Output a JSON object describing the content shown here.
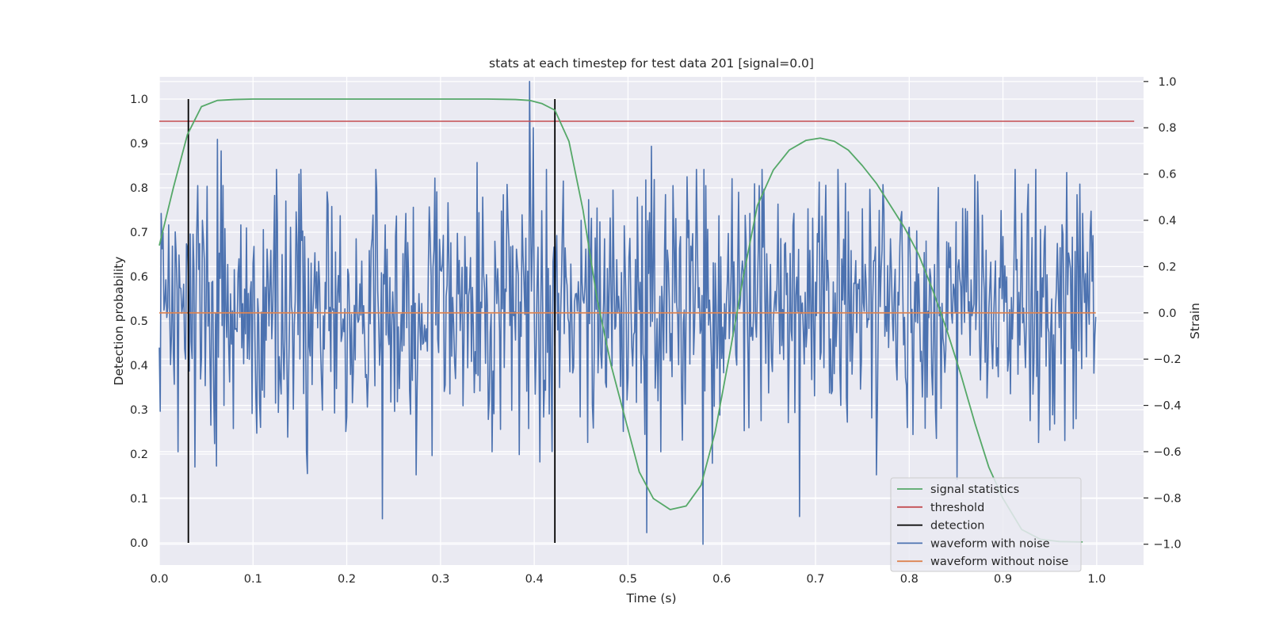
{
  "chart_data": {
    "type": "line",
    "title": "stats at each timestep for test data 201 [signal=0.0]",
    "xlabel": "Time (s)",
    "ylabel_left": "Detection probability",
    "ylabel_right": "Strain",
    "xlim": [
      0.0,
      1.05
    ],
    "ylim_left": [
      -0.05,
      1.05
    ],
    "ylim_right": [
      -1.09,
      1.02
    ],
    "x_ticks": [
      "0.0",
      "0.1",
      "0.2",
      "0.3",
      "0.4",
      "0.5",
      "0.6",
      "0.7",
      "0.8",
      "0.9",
      "1.0"
    ],
    "y_ticks_left": [
      "0.0",
      "0.1",
      "0.2",
      "0.3",
      "0.4",
      "0.5",
      "0.6",
      "0.7",
      "0.8",
      "0.9",
      "1.0"
    ],
    "y_ticks_right": [
      "−1.0",
      "−0.8",
      "−0.6",
      "−0.4",
      "−0.2",
      "0.0",
      "0.2",
      "0.4",
      "0.6",
      "0.8",
      "1.0"
    ],
    "y_tick_values_left": [
      0.0,
      0.1,
      0.2,
      0.3,
      0.4,
      0.5,
      0.6,
      0.7,
      0.8,
      0.9,
      1.0
    ],
    "y_tick_values_right": [
      -1.0,
      -0.8,
      -0.6,
      -0.4,
      -0.2,
      0.0,
      0.2,
      0.4,
      0.6,
      0.8,
      1.0
    ],
    "x_tick_values": [
      0.0,
      0.1,
      0.2,
      0.3,
      0.4,
      0.5,
      0.6,
      0.7,
      0.8,
      0.9,
      1.0
    ],
    "grid": true,
    "legend_position": "bottom-right",
    "background": "#eaeaf2",
    "series": [
      {
        "name": "signal statistics",
        "axis": "left",
        "color": "#55a868",
        "x": [
          0.0,
          0.015,
          0.03,
          0.045,
          0.062,
          0.08,
          0.1,
          0.15,
          0.2,
          0.25,
          0.3,
          0.35,
          0.38,
          0.395,
          0.408,
          0.422,
          0.437,
          0.452,
          0.467,
          0.482,
          0.497,
          0.512,
          0.527,
          0.545,
          0.562,
          0.578,
          0.593,
          0.608,
          0.623,
          0.638,
          0.655,
          0.672,
          0.69,
          0.705,
          0.72,
          0.735,
          0.75,
          0.765,
          0.78,
          0.795,
          0.81,
          0.825,
          0.84,
          0.855,
          0.87,
          0.885,
          0.9,
          0.92,
          0.94,
          0.96,
          0.985
        ],
        "values": [
          0.67,
          0.8,
          0.92,
          0.983,
          0.997,
          0.999,
          1.0,
          1.0,
          1.0,
          1.0,
          1.0,
          1.0,
          0.999,
          0.997,
          0.99,
          0.975,
          0.905,
          0.75,
          0.55,
          0.4,
          0.28,
          0.16,
          0.1,
          0.075,
          0.083,
          0.13,
          0.25,
          0.42,
          0.6,
          0.76,
          0.84,
          0.885,
          0.907,
          0.912,
          0.905,
          0.885,
          0.85,
          0.81,
          0.76,
          0.71,
          0.65,
          0.57,
          0.48,
          0.38,
          0.27,
          0.17,
          0.1,
          0.03,
          0.008,
          0.003,
          0.002
        ]
      },
      {
        "name": "threshold",
        "axis": "left",
        "color": "#c44e52",
        "x": [
          0.0,
          1.04
        ],
        "values": [
          0.95,
          0.95
        ]
      },
      {
        "name": "detection",
        "axis": "left",
        "color": "#000000",
        "type": "vlines",
        "x": [
          0.031,
          0.422
        ],
        "ymin": 0.0,
        "ymax": 1.0
      },
      {
        "name": "waveform with noise",
        "axis": "right",
        "color": "#4c72b0",
        "x_start": 0.0,
        "x_step": 0.001,
        "anchors": [
          [
            0.0,
            -0.15
          ],
          [
            0.002,
            0.43
          ],
          [
            0.006,
            0.05
          ],
          [
            0.01,
            0.38
          ],
          [
            0.013,
            -0.1
          ],
          [
            0.017,
            0.35
          ],
          [
            0.021,
            0.25
          ],
          [
            0.02,
            -0.6
          ],
          [
            0.025,
            0.03
          ],
          [
            0.028,
            -0.2
          ],
          [
            0.031,
            0.15
          ],
          [
            0.036,
            0.34
          ],
          [
            0.041,
            0.55
          ],
          [
            0.046,
            0.4
          ],
          [
            0.05,
            0.05
          ],
          [
            0.062,
            0.75
          ],
          [
            0.066,
            0.7
          ],
          [
            0.069,
            -0.4
          ],
          [
            0.079,
            -0.5
          ],
          [
            0.087,
            0.38
          ],
          [
            0.104,
            -0.52
          ],
          [
            0.119,
            0.27
          ],
          [
            0.127,
            -0.43
          ],
          [
            0.14,
            0.37
          ],
          [
            0.149,
            0.6
          ],
          [
            0.157,
            -0.6
          ],
          [
            0.166,
            0.26
          ],
          [
            0.174,
            -0.42
          ],
          [
            0.184,
            0.46
          ],
          [
            0.193,
            0.42
          ],
          [
            0.2,
            -0.45
          ],
          [
            0.21,
            0.32
          ],
          [
            0.238,
            -0.89
          ],
          [
            0.241,
            0.38
          ],
          [
            0.252,
            0.33
          ],
          [
            0.263,
            0.43
          ],
          [
            0.274,
            -0.7
          ],
          [
            0.293,
            0.27
          ],
          [
            0.31,
            -0.35
          ],
          [
            0.326,
            0.33
          ],
          [
            0.339,
            0.65
          ],
          [
            0.345,
            0.5
          ],
          [
            0.355,
            -0.6
          ],
          [
            0.365,
            0.44
          ],
          [
            0.377,
            0.29
          ],
          [
            0.388,
            0.25
          ],
          [
            0.395,
            1.0
          ],
          [
            0.394,
            -0.5
          ],
          [
            0.399,
            0.8
          ],
          [
            0.41,
            -0.45
          ],
          [
            0.42,
            0.22
          ],
          [
            0.431,
            0.57
          ],
          [
            0.45,
            0.4
          ],
          [
            0.462,
            -0.4
          ],
          [
            0.475,
            0.32
          ],
          [
            0.497,
            0.2
          ],
          [
            0.51,
            0.5
          ],
          [
            0.52,
            -0.95
          ],
          [
            0.525,
            0.72
          ],
          [
            0.535,
            -0.6
          ],
          [
            0.548,
            0.55
          ],
          [
            0.558,
            -0.55
          ],
          [
            0.565,
            0.4
          ],
          [
            0.58,
            -1.0
          ],
          [
            0.583,
            0.55
          ],
          [
            0.59,
            -0.65
          ],
          [
            0.597,
            0.42
          ],
          [
            0.611,
            0.58
          ],
          [
            0.63,
            0.43
          ],
          [
            0.64,
            0.55
          ],
          [
            0.66,
            0.47
          ],
          [
            0.677,
            0.43
          ],
          [
            0.683,
            -0.88
          ],
          [
            0.692,
            0.45
          ],
          [
            0.71,
            0.3
          ],
          [
            0.732,
            0.56
          ],
          [
            0.75,
            0.45
          ],
          [
            0.765,
            -0.7
          ],
          [
            0.78,
            0.32
          ],
          [
            0.8,
            0.37
          ],
          [
            0.83,
            0.27
          ],
          [
            0.86,
            0.45
          ],
          [
            0.88,
            0.1
          ],
          [
            0.9,
            0.33
          ],
          [
            0.92,
            0.43
          ],
          [
            0.94,
            0.36
          ],
          [
            0.955,
            -0.48
          ],
          [
            0.964,
            0.34
          ],
          [
            0.975,
            -0.5
          ],
          [
            0.985,
            0.43
          ],
          [
            0.993,
            0.35
          ],
          [
            0.998,
            -0.1
          ]
        ],
        "noise_std": 0.28,
        "x_end": 0.999
      },
      {
        "name": "waveform without noise",
        "axis": "right",
        "color": "#dd8452",
        "x": [
          0.0,
          0.999
        ],
        "values": [
          0.0,
          0.0
        ]
      }
    ]
  }
}
